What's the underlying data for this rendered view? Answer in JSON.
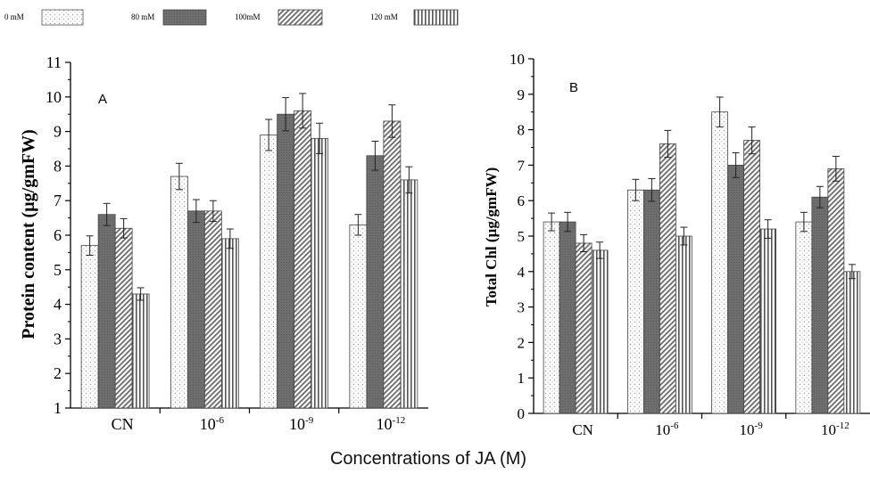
{
  "legend": [
    {
      "label": "0 mM",
      "pattern": "dots"
    },
    {
      "label": "80 mM",
      "pattern": "dark"
    },
    {
      "label": "100mM",
      "pattern": "diag"
    },
    {
      "label": "120 mM",
      "pattern": "vert"
    }
  ],
  "shared_xlabel": "Concentrations of JA (M)",
  "colors": {
    "dark_fill": "#6e6e6e",
    "dot": "#9a9a9a",
    "axis": "#000000",
    "bar_edge": "#555555"
  },
  "chart_data": [
    {
      "type": "bar",
      "panel_label": "A",
      "ylabel": "Protein content (µg/gmFW)",
      "ylim": [
        1,
        11
      ],
      "yticks": [
        1,
        2,
        3,
        4,
        5,
        6,
        7,
        8,
        9,
        10,
        11
      ],
      "categories": [
        {
          "base": "CN",
          "exp": ""
        },
        {
          "base": "10",
          "exp": "-6"
        },
        {
          "base": "10",
          "exp": "-9"
        },
        {
          "base": "10",
          "exp": "-12"
        }
      ],
      "series": [
        {
          "name": "0 mM",
          "values": [
            5.7,
            7.7,
            8.9,
            6.3
          ],
          "errors": [
            0.28,
            0.38,
            0.45,
            0.3
          ]
        },
        {
          "name": "80 mM",
          "values": [
            6.6,
            6.7,
            9.5,
            8.3
          ],
          "errors": [
            0.32,
            0.33,
            0.48,
            0.42
          ]
        },
        {
          "name": "100mM",
          "values": [
            6.2,
            6.7,
            9.6,
            9.3
          ],
          "errors": [
            0.28,
            0.3,
            0.5,
            0.47
          ]
        },
        {
          "name": "120 mM",
          "values": [
            4.3,
            5.9,
            8.8,
            7.6
          ],
          "errors": [
            0.18,
            0.28,
            0.44,
            0.38
          ]
        }
      ]
    },
    {
      "type": "bar",
      "panel_label": "B",
      "ylabel": "Total Chl (µg/gmFW)",
      "ylim": [
        0,
        10
      ],
      "yticks": [
        0,
        1,
        2,
        3,
        4,
        5,
        6,
        7,
        8,
        9,
        10
      ],
      "categories": [
        {
          "base": "CN",
          "exp": ""
        },
        {
          "base": "10",
          "exp": "-6"
        },
        {
          "base": "10",
          "exp": "-9"
        },
        {
          "base": "10",
          "exp": "-12"
        }
      ],
      "series": [
        {
          "name": "0 mM",
          "values": [
            5.4,
            6.3,
            8.5,
            5.4
          ],
          "errors": [
            0.25,
            0.3,
            0.42,
            0.27
          ]
        },
        {
          "name": "80 mM",
          "values": [
            5.4,
            6.3,
            7.0,
            6.1
          ],
          "errors": [
            0.27,
            0.32,
            0.35,
            0.3
          ]
        },
        {
          "name": "100mM",
          "values": [
            4.8,
            7.6,
            7.7,
            6.9
          ],
          "errors": [
            0.24,
            0.38,
            0.38,
            0.35
          ]
        },
        {
          "name": "120 mM",
          "values": [
            4.6,
            5.0,
            5.2,
            4.0
          ],
          "errors": [
            0.23,
            0.25,
            0.26,
            0.2
          ]
        }
      ]
    }
  ]
}
